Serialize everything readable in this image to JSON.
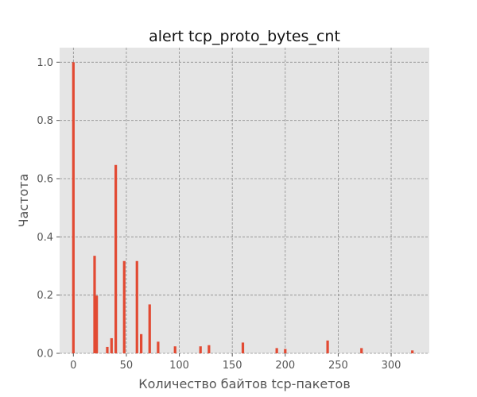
{
  "chart_data": {
    "type": "bar",
    "title": "alert tcp_proto_bytes_cnt",
    "xlabel": "Количество байтов tcp-пакетов",
    "ylabel": "Частота",
    "xlim": [
      -13,
      336
    ],
    "ylim": [
      0,
      1.05
    ],
    "x_ticks": [
      0,
      50,
      100,
      150,
      200,
      250,
      300
    ],
    "y_ticks": [
      0.0,
      0.2,
      0.4,
      0.6,
      0.8,
      1.0
    ],
    "x_tick_labels": [
      "0",
      "50",
      "100",
      "150",
      "200",
      "250",
      "300"
    ],
    "y_tick_labels": [
      "0.0",
      "0.2",
      "0.4",
      "0.6",
      "0.8",
      "1.0"
    ],
    "grid": true,
    "bar_color": "#E24A33",
    "background_color": "#E5E5E5",
    "x": [
      0,
      20,
      22,
      32,
      36,
      40,
      48,
      60,
      64,
      72,
      80,
      96,
      120,
      128,
      160,
      192,
      200,
      240,
      272,
      320
    ],
    "values": [
      1.0,
      0.335,
      0.198,
      0.022,
      0.052,
      0.647,
      0.317,
      0.317,
      0.066,
      0.168,
      0.04,
      0.024,
      0.024,
      0.028,
      0.037,
      0.018,
      0.015,
      0.044,
      0.018,
      0.01
    ]
  }
}
